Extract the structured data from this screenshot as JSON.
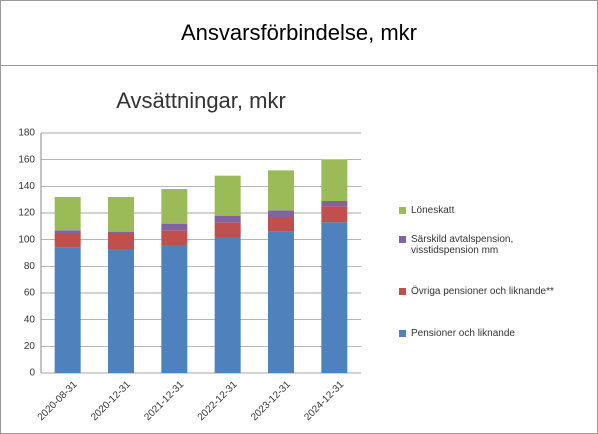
{
  "header": {
    "title": "Ansvarsförbindelse, mkr"
  },
  "chart_data": {
    "type": "stacked_bar",
    "title": "Avsättningar, mkr",
    "categories": [
      "2020-08-31",
      "2020-12-31",
      "2021-12-31",
      "2022-12-31",
      "2023-12-31",
      "2024-12-31"
    ],
    "series": [
      {
        "name": "Pensioner och liknande",
        "color": "#4f81bd",
        "values": [
          94,
          93,
          96,
          102,
          106,
          113
        ]
      },
      {
        "name": "Övriga pensioner och liknande**",
        "color": "#c0504d",
        "values": [
          11,
          12,
          11,
          11,
          11,
          12
        ]
      },
      {
        "name": "Särskild avtalspension, visstidspension mm",
        "color": "#8064a2",
        "values": [
          2,
          1,
          5,
          5,
          5,
          4
        ]
      },
      {
        "name": "Löneskatt",
        "color": "#9bbb59",
        "values": [
          25,
          26,
          26,
          30,
          30,
          31
        ]
      }
    ],
    "ylim": [
      0,
      180
    ],
    "yticks": [
      0,
      20,
      40,
      60,
      80,
      100,
      120,
      140,
      160,
      180
    ],
    "grid": true,
    "legend": "right"
  }
}
